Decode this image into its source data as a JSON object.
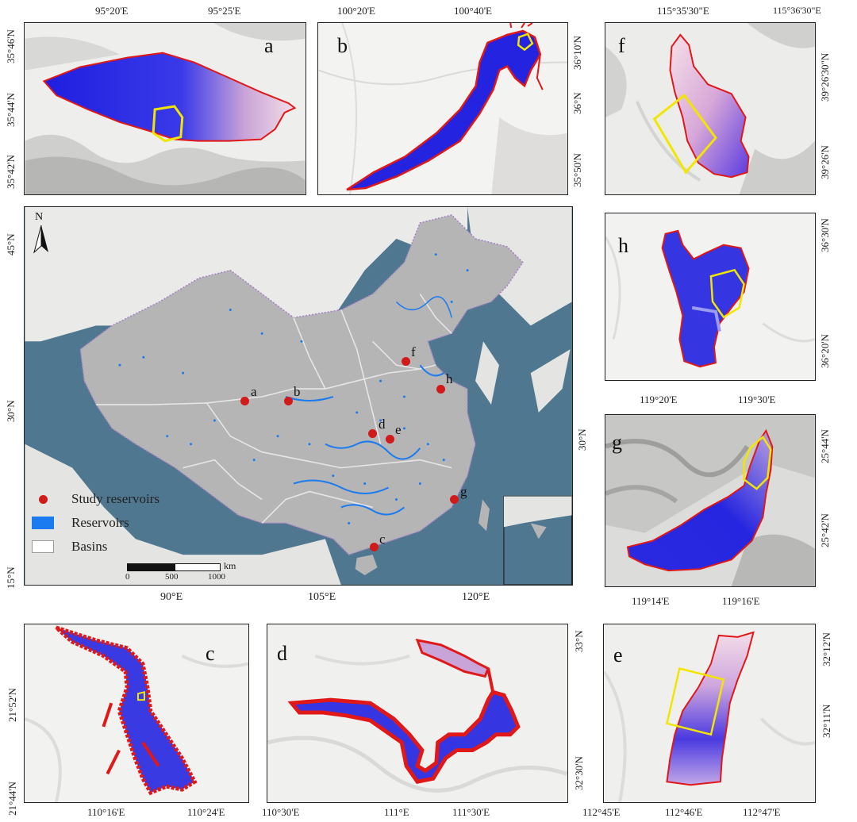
{
  "main_map": {
    "lat_ticks": [
      "45°N",
      "30°N",
      "15°N"
    ],
    "lon_ticks": [
      "90°E",
      "105°E",
      "120°E"
    ],
    "right_lat_tick": "30°N",
    "north_label": "N",
    "legend": {
      "study_reservoirs": "Study reservoirs",
      "reservoirs": "Reservoirs",
      "basins": "Basins"
    },
    "scale": {
      "l0": "0",
      "l1": "500",
      "l2": "1000",
      "unit": "km"
    },
    "sites": [
      {
        "id": "a",
        "label": "a"
      },
      {
        "id": "b",
        "label": "b"
      },
      {
        "id": "c",
        "label": "c"
      },
      {
        "id": "d",
        "label": "d"
      },
      {
        "id": "e",
        "label": "e"
      },
      {
        "id": "f",
        "label": "f"
      },
      {
        "id": "g",
        "label": "g"
      },
      {
        "id": "h",
        "label": "h"
      }
    ],
    "colors": {
      "land": "#b5b5b5",
      "ocean": "#4f7890",
      "reservoir": "#1a7af0",
      "site": "#d11b1b"
    }
  },
  "panels": {
    "a": {
      "label": "a",
      "top_ticks": [
        "95°20'E",
        "95°25'E"
      ],
      "left_ticks": [
        "35°46'N",
        "35°44'N",
        "35°42'N"
      ]
    },
    "b": {
      "label": "b",
      "top_ticks": [
        "100°20'E",
        "100°40'E"
      ],
      "right_ticks": [
        "36°10'N",
        "36°N",
        "35°50'N"
      ]
    },
    "f": {
      "label": "f",
      "top_ticks": [
        "115°35'30\"E",
        "115°36'30\"E"
      ],
      "right_ticks": [
        "39°26'30\"N",
        "39°26'N"
      ]
    },
    "h": {
      "label": "h",
      "bottom_ticks": [
        "119°20'E",
        "119°30'E"
      ],
      "right_ticks": [
        "36°30'N",
        "36°20'N"
      ]
    },
    "g": {
      "label": "g",
      "bottom_ticks": [
        "119°14'E",
        "119°16'E"
      ],
      "right_ticks": [
        "25°44'N",
        "25°42'N"
      ]
    },
    "c": {
      "label": "c",
      "bottom_ticks": [
        "110°16'E",
        "110°24'E"
      ],
      "left_ticks": [
        "21°52'N",
        "21°44'N"
      ]
    },
    "d": {
      "label": "d",
      "bottom_ticks": [
        "110°30'E",
        "111°E",
        "111°30'E"
      ],
      "right_ticks": [
        "33°N",
        "32°30'N"
      ]
    },
    "e": {
      "label": "e",
      "bottom_ticks": [
        "112°45'E",
        "112°46'E",
        "112°47'E"
      ],
      "right_ticks": [
        "32°12'N",
        "32°11'N"
      ]
    }
  }
}
